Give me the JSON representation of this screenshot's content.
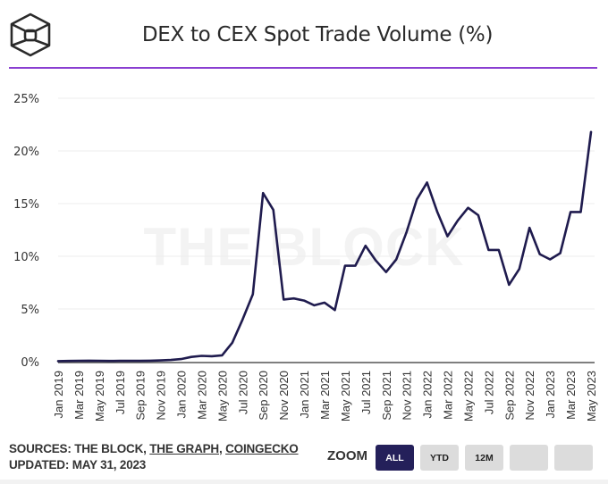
{
  "header": {
    "title": "DEX to CEX Spot Trade Volume (%)",
    "logo_icon": "the-block-cube-logo",
    "accent_color": "#8a3fd1"
  },
  "watermark": "THE BLOCK",
  "footer": {
    "sources_prefix": "SOURCES: THE BLOCK, ",
    "source_links": [
      "THE GRAPH",
      "COINGECKO"
    ],
    "separator": ", ",
    "updated": "UPDATED: MAY 31, 2023",
    "zoom_label": "ZOOM",
    "zoom_buttons": [
      {
        "label": "ALL",
        "active": true
      },
      {
        "label": "YTD",
        "active": false
      },
      {
        "label": "12M",
        "active": false
      },
      {
        "label": "",
        "active": false
      },
      {
        "label": "",
        "active": false
      }
    ],
    "active_color": "#24205a"
  },
  "chart_data": {
    "type": "line",
    "title": "DEX to CEX Spot Trade Volume (%)",
    "xlabel": "",
    "ylabel": "",
    "ylim": [
      0,
      25
    ],
    "yticks": [
      0,
      5,
      10,
      15,
      20,
      25
    ],
    "ytick_labels": [
      "0%",
      "5%",
      "10%",
      "15%",
      "20%",
      "25%"
    ],
    "grid": true,
    "line_color": "#1f1b4e",
    "x": [
      "Jan 2019",
      "Feb 2019",
      "Mar 2019",
      "Apr 2019",
      "May 2019",
      "Jun 2019",
      "Jul 2019",
      "Aug 2019",
      "Sep 2019",
      "Oct 2019",
      "Nov 2019",
      "Dec 2019",
      "Jan 2020",
      "Feb 2020",
      "Mar 2020",
      "Apr 2020",
      "May 2020",
      "Jun 2020",
      "Jul 2020",
      "Aug 2020",
      "Sep 2020",
      "Oct 2020",
      "Nov 2020",
      "Dec 2020",
      "Jan 2021",
      "Feb 2021",
      "Mar 2021",
      "Apr 2021",
      "May 2021",
      "Jun 2021",
      "Jul 2021",
      "Aug 2021",
      "Sep 2021",
      "Oct 2021",
      "Nov 2021",
      "Dec 2021",
      "Jan 2022",
      "Feb 2022",
      "Mar 2022",
      "Apr 2022",
      "May 2022",
      "Jun 2022",
      "Jul 2022",
      "Aug 2022",
      "Sep 2022",
      "Oct 2022",
      "Nov 2022",
      "Dec 2022",
      "Jan 2023",
      "Feb 2023",
      "Mar 2023",
      "Apr 2023",
      "May 2023"
    ],
    "xtick_labels": [
      "Jan 2019",
      "Mar 2019",
      "May 2019",
      "Jul 2019",
      "Sep 2019",
      "Nov 2019",
      "Jan 2020",
      "Mar 2020",
      "May 2020",
      "Jul 2020",
      "Sep 2020",
      "Nov 2020",
      "Jan 2021",
      "Mar 2021",
      "May 2021",
      "Jul 2021",
      "Sep 2021",
      "Nov 2021",
      "Jan 2022",
      "Mar 2022",
      "May 2022",
      "Jul 2022",
      "Sep 2022",
      "Nov 2022",
      "Jan 2023",
      "Mar 2023",
      "May 2023"
    ],
    "series": [
      {
        "name": "DEX to CEX Spot Trade Volume (%)",
        "values": [
          0.05,
          0.07,
          0.08,
          0.09,
          0.08,
          0.07,
          0.08,
          0.08,
          0.08,
          0.09,
          0.12,
          0.16,
          0.25,
          0.45,
          0.55,
          0.52,
          0.6,
          1.8,
          4.0,
          6.4,
          16.0,
          14.4,
          5.9,
          6.0,
          5.8,
          5.35,
          5.6,
          4.9,
          9.1,
          9.1,
          11.0,
          9.6,
          8.5,
          9.7,
          12.3,
          15.4,
          17.0,
          14.2,
          11.9,
          13.4,
          14.6,
          13.9,
          10.6,
          10.6,
          7.3,
          8.8,
          12.7,
          10.2,
          9.7,
          10.3,
          14.2,
          14.2,
          21.8
        ]
      }
    ]
  }
}
